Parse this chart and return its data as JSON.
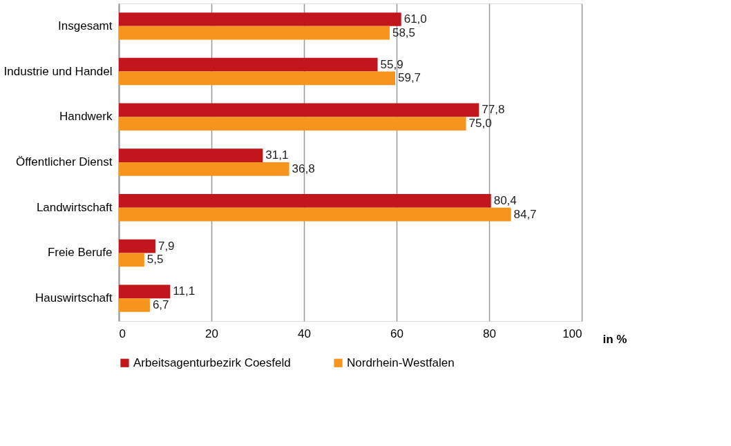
{
  "chart_data": {
    "type": "bar",
    "orientation": "horizontal",
    "xlabel": "in %",
    "categories": [
      "Insgesamt",
      "Industrie und Handel",
      "Handwerk",
      "Öffentlicher Dienst",
      "Landwirtschaft",
      "Freie Berufe",
      "Hauswirtschaft"
    ],
    "series": [
      {
        "name": "Arbeitsagenturbezirk Coesfeld",
        "color": "#c0161c",
        "values": [
          61.0,
          55.9,
          77.8,
          31.1,
          80.4,
          7.9,
          11.1
        ],
        "value_labels": [
          "61,0",
          "55,9",
          "77,8",
          "31,1",
          "80,4",
          "7,9",
          "11,1"
        ]
      },
      {
        "name": "Nordrhein-Westfalen",
        "color": "#f7941d",
        "values": [
          58.5,
          59.7,
          75.0,
          36.8,
          84.7,
          5.5,
          6.7
        ],
        "value_labels": [
          "58,5",
          "59,7",
          "75,0",
          "36,8",
          "84,7",
          "5,5",
          "6,7"
        ]
      }
    ],
    "xlim": [
      0,
      100
    ],
    "xticks": [
      0,
      20,
      40,
      60,
      80,
      100
    ],
    "grid": "x",
    "legend": "bottom"
  }
}
